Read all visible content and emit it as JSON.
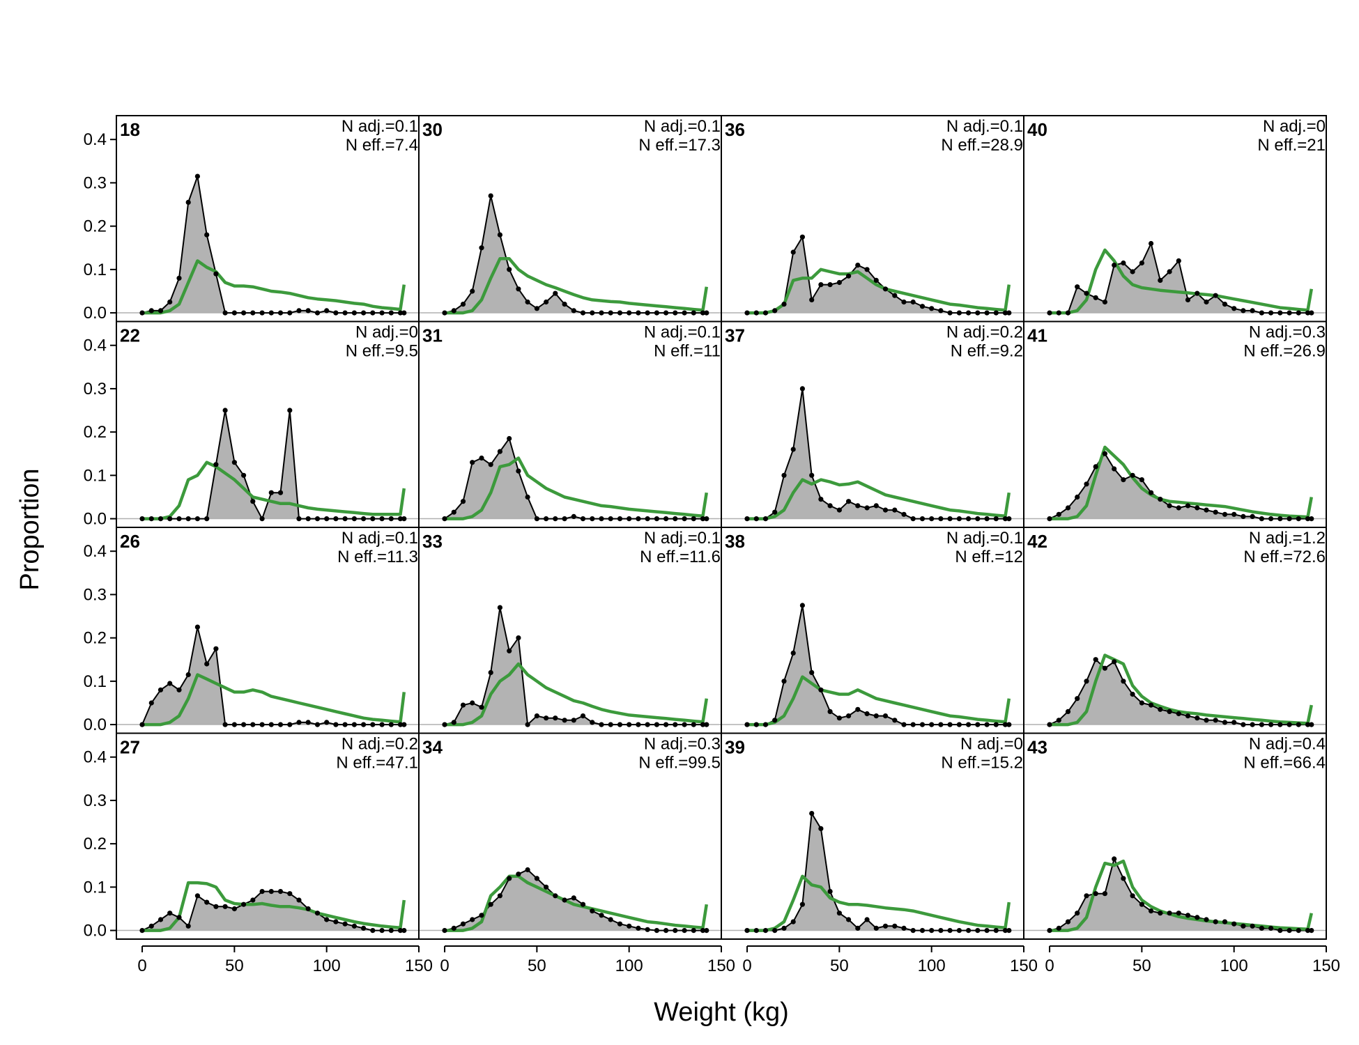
{
  "chart_data": {
    "type": "area",
    "xlabel": "Weight (kg)",
    "ylabel": "Proportion",
    "xlim": [
      -14,
      150
    ],
    "ylim": [
      -0.02,
      0.455
    ],
    "x_ticks": [
      0,
      50,
      100,
      150
    ],
    "y_ticks": [
      0.0,
      0.1,
      0.2,
      0.3,
      0.4
    ],
    "x_tick_labels": [
      "0",
      "50",
      "100",
      "150"
    ],
    "y_tick_labels": [
      "0.0",
      "0.1",
      "0.2",
      "0.3",
      "0.4"
    ],
    "grid": false,
    "layout": "4x4 panels, column-major",
    "series_legend": [],
    "colors": {
      "observed_fill": "#b3b3b3",
      "observed_line": "#000000",
      "expected_line": "#3c9a3c",
      "zero_line": "#b0b0b0"
    },
    "x_bins": [
      0,
      5,
      10,
      15,
      20,
      25,
      30,
      35,
      40,
      45,
      50,
      55,
      60,
      65,
      70,
      75,
      80,
      85,
      90,
      95,
      100,
      105,
      110,
      115,
      120,
      125,
      130,
      135,
      140,
      142
    ],
    "panels": [
      {
        "label": "18",
        "n_adj_text": "N adj.=0.1",
        "n_eff_text": "N eff.=7.4",
        "observed": [
          0.0,
          0.005,
          0.005,
          0.025,
          0.08,
          0.255,
          0.315,
          0.18,
          0.09,
          0.0,
          0.0,
          0.0,
          0.0,
          0.0,
          0.0,
          0.0,
          0.0,
          0.005,
          0.005,
          0.0,
          0.005,
          0.0,
          0.0,
          0.0,
          0.0,
          0.0,
          0.0,
          0.0,
          0.0,
          0.0
        ],
        "expected": [
          0.0,
          0.0,
          0.0,
          0.005,
          0.02,
          0.07,
          0.12,
          0.105,
          0.095,
          0.07,
          0.062,
          0.062,
          0.06,
          0.055,
          0.05,
          0.048,
          0.045,
          0.04,
          0.035,
          0.032,
          0.03,
          0.028,
          0.025,
          0.022,
          0.02,
          0.015,
          0.012,
          0.01,
          0.008,
          0.065
        ]
      },
      {
        "label": "22",
        "n_adj_text": "N adj.=0",
        "n_eff_text": "N eff.=9.5",
        "observed": [
          0.0,
          0.0,
          0.0,
          0.0,
          0.0,
          0.0,
          0.0,
          0.0,
          0.125,
          0.25,
          0.13,
          0.1,
          0.04,
          0.0,
          0.06,
          0.06,
          0.25,
          0.0,
          0.0,
          0.0,
          0.0,
          0.0,
          0.0,
          0.0,
          0.0,
          0.0,
          0.0,
          0.0,
          0.0,
          0.0
        ],
        "expected": [
          0.0,
          0.0,
          0.0,
          0.005,
          0.03,
          0.09,
          0.1,
          0.13,
          0.12,
          0.105,
          0.09,
          0.07,
          0.05,
          0.045,
          0.04,
          0.035,
          0.035,
          0.03,
          0.025,
          0.022,
          0.02,
          0.018,
          0.016,
          0.014,
          0.012,
          0.01,
          0.01,
          0.01,
          0.01,
          0.07
        ]
      },
      {
        "label": "26",
        "n_adj_text": "N adj.=0.1",
        "n_eff_text": "N eff.=11.3",
        "observed": [
          0.0,
          0.05,
          0.08,
          0.095,
          0.08,
          0.115,
          0.225,
          0.14,
          0.175,
          0.0,
          0.0,
          0.0,
          0.0,
          0.0,
          0.0,
          0.0,
          0.0,
          0.005,
          0.005,
          0.0,
          0.005,
          0.0,
          0.0,
          0.0,
          0.0,
          0.0,
          0.0,
          0.0,
          0.0,
          0.0
        ],
        "expected": [
          0.0,
          0.0,
          0.0,
          0.005,
          0.02,
          0.06,
          0.115,
          0.105,
          0.095,
          0.085,
          0.075,
          0.075,
          0.08,
          0.075,
          0.065,
          0.06,
          0.055,
          0.05,
          0.045,
          0.04,
          0.035,
          0.03,
          0.025,
          0.02,
          0.015,
          0.012,
          0.01,
          0.008,
          0.006,
          0.075
        ]
      },
      {
        "label": "27",
        "n_adj_text": "N adj.=0.2",
        "n_eff_text": "N eff.=47.1",
        "observed": [
          0.0,
          0.01,
          0.025,
          0.04,
          0.03,
          0.01,
          0.08,
          0.065,
          0.055,
          0.055,
          0.05,
          0.06,
          0.07,
          0.09,
          0.09,
          0.09,
          0.085,
          0.07,
          0.05,
          0.04,
          0.025,
          0.02,
          0.015,
          0.01,
          0.005,
          0.0,
          0.0,
          0.0,
          0.0,
          0.0
        ],
        "expected": [
          0.0,
          0.0,
          0.0,
          0.005,
          0.03,
          0.11,
          0.11,
          0.108,
          0.1,
          0.07,
          0.062,
          0.06,
          0.06,
          0.062,
          0.058,
          0.055,
          0.055,
          0.052,
          0.048,
          0.04,
          0.035,
          0.03,
          0.025,
          0.02,
          0.016,
          0.013,
          0.01,
          0.008,
          0.006,
          0.07
        ]
      },
      {
        "label": "30",
        "n_adj_text": "N adj.=0.1",
        "n_eff_text": "N eff.=17.3",
        "observed": [
          0.0,
          0.005,
          0.02,
          0.05,
          0.15,
          0.27,
          0.18,
          0.1,
          0.055,
          0.025,
          0.01,
          0.025,
          0.045,
          0.02,
          0.005,
          0.0,
          0.0,
          0.0,
          0.0,
          0.0,
          0.0,
          0.0,
          0.0,
          0.0,
          0.0,
          0.0,
          0.0,
          0.0,
          0.0,
          0.0
        ],
        "expected": [
          0.0,
          0.0,
          0.0,
          0.005,
          0.03,
          0.08,
          0.125,
          0.125,
          0.1,
          0.085,
          0.075,
          0.065,
          0.058,
          0.05,
          0.042,
          0.035,
          0.03,
          0.028,
          0.026,
          0.025,
          0.022,
          0.02,
          0.018,
          0.016,
          0.014,
          0.012,
          0.01,
          0.008,
          0.006,
          0.06
        ]
      },
      {
        "label": "31",
        "n_adj_text": "N adj.=0.1",
        "n_eff_text": "N eff.=11",
        "observed": [
          0.0,
          0.015,
          0.04,
          0.13,
          0.14,
          0.125,
          0.155,
          0.185,
          0.11,
          0.05,
          0.0,
          0.0,
          0.0,
          0.0,
          0.005,
          0.0,
          0.0,
          0.0,
          0.0,
          0.0,
          0.0,
          0.0,
          0.0,
          0.0,
          0.0,
          0.0,
          0.0,
          0.0,
          0.0,
          0.0
        ],
        "expected": [
          0.0,
          0.0,
          0.0,
          0.005,
          0.02,
          0.06,
          0.12,
          0.125,
          0.14,
          0.1,
          0.085,
          0.07,
          0.06,
          0.05,
          0.045,
          0.04,
          0.035,
          0.03,
          0.028,
          0.025,
          0.022,
          0.02,
          0.018,
          0.016,
          0.014,
          0.012,
          0.01,
          0.008,
          0.006,
          0.06
        ]
      },
      {
        "label": "33",
        "n_adj_text": "N adj.=0.1",
        "n_eff_text": "N eff.=11.6",
        "observed": [
          0.0,
          0.005,
          0.045,
          0.05,
          0.04,
          0.12,
          0.27,
          0.17,
          0.2,
          0.0,
          0.02,
          0.015,
          0.015,
          0.01,
          0.01,
          0.02,
          0.005,
          0.0,
          0.0,
          0.0,
          0.0,
          0.0,
          0.0,
          0.0,
          0.0,
          0.0,
          0.0,
          0.0,
          0.0,
          0.0
        ],
        "expected": [
          0.0,
          0.0,
          0.0,
          0.005,
          0.02,
          0.07,
          0.1,
          0.115,
          0.14,
          0.115,
          0.1,
          0.085,
          0.075,
          0.065,
          0.055,
          0.05,
          0.042,
          0.035,
          0.03,
          0.026,
          0.022,
          0.02,
          0.018,
          0.016,
          0.014,
          0.012,
          0.01,
          0.008,
          0.006,
          0.06
        ]
      },
      {
        "label": "34",
        "n_adj_text": "N adj.=0.3",
        "n_eff_text": "N eff.=99.5",
        "observed": [
          0.0,
          0.005,
          0.015,
          0.025,
          0.035,
          0.06,
          0.08,
          0.12,
          0.13,
          0.14,
          0.12,
          0.1,
          0.08,
          0.07,
          0.075,
          0.06,
          0.045,
          0.035,
          0.025,
          0.015,
          0.01,
          0.005,
          0.002,
          0.0,
          0.0,
          0.0,
          0.0,
          0.0,
          0.0,
          0.0
        ],
        "expected": [
          0.0,
          0.0,
          0.0,
          0.005,
          0.02,
          0.08,
          0.1,
          0.125,
          0.125,
          0.11,
          0.1,
          0.09,
          0.08,
          0.07,
          0.06,
          0.055,
          0.05,
          0.045,
          0.04,
          0.035,
          0.03,
          0.025,
          0.02,
          0.018,
          0.015,
          0.012,
          0.01,
          0.008,
          0.006,
          0.06
        ]
      },
      {
        "label": "36",
        "n_adj_text": "N adj.=0.1",
        "n_eff_text": "N eff.=28.9",
        "observed": [
          0.0,
          0.0,
          0.0,
          0.005,
          0.02,
          0.14,
          0.175,
          0.03,
          0.065,
          0.065,
          0.07,
          0.085,
          0.11,
          0.1,
          0.075,
          0.055,
          0.04,
          0.025,
          0.025,
          0.015,
          0.01,
          0.005,
          0.0,
          0.0,
          0.0,
          0.0,
          0.0,
          0.0,
          0.0,
          0.0
        ],
        "expected": [
          0.0,
          0.0,
          0.0,
          0.005,
          0.02,
          0.075,
          0.08,
          0.08,
          0.1,
          0.095,
          0.09,
          0.09,
          0.095,
          0.08,
          0.065,
          0.055,
          0.05,
          0.045,
          0.04,
          0.035,
          0.03,
          0.025,
          0.02,
          0.018,
          0.015,
          0.012,
          0.01,
          0.008,
          0.006,
          0.065
        ]
      },
      {
        "label": "37",
        "n_adj_text": "N adj.=0.2",
        "n_eff_text": "N eff.=9.2",
        "observed": [
          0.0,
          0.0,
          0.0,
          0.015,
          0.1,
          0.16,
          0.3,
          0.1,
          0.045,
          0.03,
          0.02,
          0.04,
          0.03,
          0.025,
          0.03,
          0.02,
          0.02,
          0.01,
          0.0,
          0.0,
          0.0,
          0.0,
          0.0,
          0.0,
          0.0,
          0.0,
          0.0,
          0.0,
          0.0,
          0.0
        ],
        "expected": [
          0.0,
          0.0,
          0.0,
          0.005,
          0.02,
          0.06,
          0.09,
          0.08,
          0.09,
          0.085,
          0.078,
          0.08,
          0.085,
          0.075,
          0.065,
          0.055,
          0.05,
          0.045,
          0.04,
          0.035,
          0.03,
          0.025,
          0.02,
          0.018,
          0.015,
          0.012,
          0.01,
          0.008,
          0.006,
          0.06
        ]
      },
      {
        "label": "38",
        "n_adj_text": "N adj.=0.1",
        "n_eff_text": "N eff.=12",
        "observed": [
          0.0,
          0.0,
          0.0,
          0.01,
          0.1,
          0.165,
          0.275,
          0.12,
          0.08,
          0.03,
          0.015,
          0.02,
          0.035,
          0.025,
          0.02,
          0.02,
          0.01,
          0.0,
          0.0,
          0.0,
          0.0,
          0.0,
          0.0,
          0.0,
          0.0,
          0.0,
          0.0,
          0.0,
          0.0,
          0.0
        ],
        "expected": [
          0.0,
          0.0,
          0.0,
          0.005,
          0.02,
          0.06,
          0.11,
          0.095,
          0.08,
          0.075,
          0.07,
          0.07,
          0.08,
          0.07,
          0.06,
          0.055,
          0.05,
          0.045,
          0.04,
          0.035,
          0.03,
          0.025,
          0.02,
          0.018,
          0.015,
          0.012,
          0.01,
          0.008,
          0.006,
          0.06
        ]
      },
      {
        "label": "39",
        "n_adj_text": "N adj.=0",
        "n_eff_text": "N eff.=15.2",
        "observed": [
          0.0,
          0.0,
          0.0,
          0.0,
          0.005,
          0.02,
          0.06,
          0.27,
          0.235,
          0.09,
          0.04,
          0.025,
          0.005,
          0.025,
          0.005,
          0.01,
          0.01,
          0.005,
          0.0,
          0.0,
          0.0,
          0.0,
          0.0,
          0.0,
          0.0,
          0.0,
          0.0,
          0.0,
          0.0,
          0.0
        ],
        "expected": [
          0.0,
          0.0,
          0.0,
          0.005,
          0.02,
          0.07,
          0.125,
          0.105,
          0.1,
          0.075,
          0.065,
          0.06,
          0.06,
          0.058,
          0.055,
          0.052,
          0.05,
          0.048,
          0.045,
          0.04,
          0.035,
          0.03,
          0.025,
          0.02,
          0.016,
          0.012,
          0.01,
          0.008,
          0.006,
          0.065
        ]
      },
      {
        "label": "40",
        "n_adj_text": "N adj.=0",
        "n_eff_text": "N eff.=21",
        "observed": [
          0.0,
          0.0,
          0.0,
          0.06,
          0.045,
          0.035,
          0.025,
          0.11,
          0.115,
          0.095,
          0.115,
          0.16,
          0.075,
          0.095,
          0.12,
          0.03,
          0.045,
          0.025,
          0.04,
          0.02,
          0.01,
          0.005,
          0.005,
          0.0,
          0.0,
          0.0,
          0.0,
          0.0,
          0.0,
          0.0
        ],
        "expected": [
          0.0,
          0.0,
          0.0,
          0.005,
          0.03,
          0.1,
          0.145,
          0.12,
          0.085,
          0.065,
          0.058,
          0.055,
          0.052,
          0.05,
          0.048,
          0.046,
          0.044,
          0.042,
          0.04,
          0.036,
          0.032,
          0.028,
          0.024,
          0.02,
          0.016,
          0.012,
          0.01,
          0.008,
          0.006,
          0.055
        ]
      },
      {
        "label": "41",
        "n_adj_text": "N adj.=0.3",
        "n_eff_text": "N eff.=26.9",
        "observed": [
          0.0,
          0.01,
          0.025,
          0.05,
          0.08,
          0.12,
          0.15,
          0.115,
          0.09,
          0.1,
          0.09,
          0.06,
          0.045,
          0.03,
          0.025,
          0.03,
          0.025,
          0.02,
          0.015,
          0.01,
          0.01,
          0.005,
          0.005,
          0.0,
          0.0,
          0.0,
          0.0,
          0.0,
          0.0,
          0.0
        ],
        "expected": [
          0.0,
          0.0,
          0.0,
          0.005,
          0.03,
          0.1,
          0.165,
          0.145,
          0.125,
          0.095,
          0.07,
          0.055,
          0.045,
          0.04,
          0.038,
          0.036,
          0.034,
          0.032,
          0.03,
          0.028,
          0.024,
          0.02,
          0.016,
          0.013,
          0.01,
          0.008,
          0.006,
          0.005,
          0.004,
          0.05
        ]
      },
      {
        "label": "42",
        "n_adj_text": "N adj.=1.2",
        "n_eff_text": "N eff.=72.6",
        "observed": [
          0.0,
          0.01,
          0.03,
          0.06,
          0.1,
          0.15,
          0.13,
          0.145,
          0.1,
          0.07,
          0.05,
          0.045,
          0.035,
          0.03,
          0.025,
          0.02,
          0.015,
          0.01,
          0.01,
          0.005,
          0.005,
          0.0,
          0.0,
          0.0,
          0.0,
          0.0,
          0.0,
          0.0,
          0.0,
          0.0
        ],
        "expected": [
          0.0,
          0.0,
          0.0,
          0.005,
          0.03,
          0.1,
          0.16,
          0.15,
          0.14,
          0.09,
          0.065,
          0.05,
          0.042,
          0.035,
          0.03,
          0.027,
          0.025,
          0.022,
          0.02,
          0.018,
          0.016,
          0.014,
          0.012,
          0.01,
          0.008,
          0.006,
          0.005,
          0.004,
          0.003,
          0.045
        ]
      },
      {
        "label": "43",
        "n_adj_text": "N adj.=0.4",
        "n_eff_text": "N eff.=66.4",
        "observed": [
          0.0,
          0.005,
          0.02,
          0.04,
          0.08,
          0.085,
          0.085,
          0.165,
          0.12,
          0.08,
          0.06,
          0.045,
          0.04,
          0.04,
          0.04,
          0.035,
          0.03,
          0.025,
          0.02,
          0.02,
          0.015,
          0.01,
          0.01,
          0.005,
          0.005,
          0.0,
          0.0,
          0.0,
          0.0,
          0.0
        ],
        "expected": [
          0.0,
          0.0,
          0.0,
          0.005,
          0.03,
          0.1,
          0.155,
          0.15,
          0.16,
          0.1,
          0.07,
          0.055,
          0.045,
          0.038,
          0.032,
          0.028,
          0.025,
          0.022,
          0.02,
          0.018,
          0.016,
          0.014,
          0.012,
          0.01,
          0.008,
          0.006,
          0.005,
          0.004,
          0.003,
          0.04
        ]
      }
    ]
  }
}
